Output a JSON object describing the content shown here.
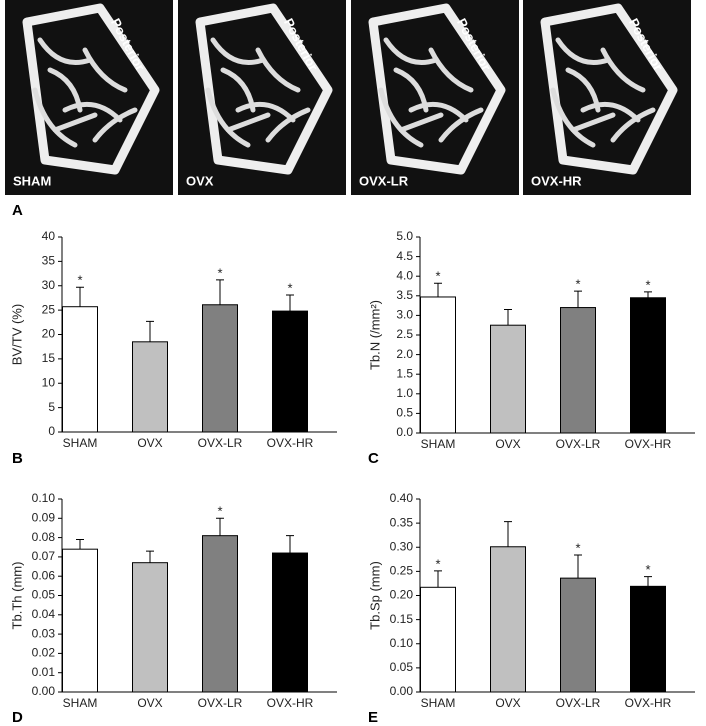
{
  "images": [
    {
      "label": "SHAM",
      "orientation": "Posterior"
    },
    {
      "label": "OVX",
      "orientation": "Posterior"
    },
    {
      "label": "OVX-LR",
      "orientation": "Posterior"
    },
    {
      "label": "OVX-HR",
      "orientation": "Posterior"
    }
  ],
  "images_panel": "A",
  "chart_data": [
    {
      "type": "bar",
      "panel": "B",
      "ylabel": "BV/TV (%)",
      "categories": [
        "SHAM",
        "OVX",
        "OVX-LR",
        "OVX-HR"
      ],
      "values": [
        25.7,
        18.5,
        26.1,
        24.8
      ],
      "errors": [
        4.0,
        4.2,
        5.1,
        3.3
      ],
      "significance": [
        "*",
        null,
        "*",
        "*"
      ],
      "colors": [
        "#ffffff",
        "#c0c0c0",
        "#808080",
        "#000000"
      ],
      "ylim": [
        0,
        40
      ],
      "yticks": [
        0,
        5,
        10,
        15,
        20,
        25,
        30,
        35,
        40
      ]
    },
    {
      "type": "bar",
      "panel": "C",
      "ylabel": "Tb.N (/mm²)",
      "categories": [
        "SHAM",
        "OVX",
        "OVX-LR",
        "OVX-HR"
      ],
      "values": [
        3.47,
        2.75,
        3.2,
        3.45
      ],
      "errors": [
        0.35,
        0.4,
        0.42,
        0.15
      ],
      "significance": [
        "*",
        null,
        "*",
        "*"
      ],
      "colors": [
        "#ffffff",
        "#c0c0c0",
        "#808080",
        "#000000"
      ],
      "ylim": [
        0,
        5
      ],
      "yticks": [
        {
          "value": 0,
          "label": "0.0"
        },
        0.5,
        {
          "value": 1,
          "label": "1.0"
        },
        1.5,
        {
          "value": 2,
          "label": "2.0"
        },
        2.5,
        {
          "value": 3,
          "label": "3.0"
        },
        3.5,
        {
          "value": 4,
          "label": "4.0"
        },
        4.5,
        {
          "value": 5,
          "label": "5.0"
        }
      ]
    },
    {
      "type": "bar",
      "panel": "D",
      "ylabel": "Tb.Th (mm)",
      "categories": [
        "SHAM",
        "OVX",
        "OVX-LR",
        "OVX-HR"
      ],
      "values": [
        0.074,
        0.067,
        0.081,
        0.072
      ],
      "errors": [
        0.005,
        0.006,
        0.009,
        0.009
      ],
      "significance": [
        null,
        null,
        "*",
        null
      ],
      "colors": [
        "#ffffff",
        "#c0c0c0",
        "#808080",
        "#000000"
      ],
      "ylim": [
        0,
        0.1
      ],
      "yticks": [
        {
          "value": 0,
          "label": "0.00"
        },
        {
          "value": 0.01,
          "label": "0.01"
        },
        {
          "value": 0.02,
          "label": "0.02"
        },
        {
          "value": 0.03,
          "label": "0.03"
        },
        {
          "value": 0.04,
          "label": "0.04"
        },
        {
          "value": 0.05,
          "label": "0.05"
        },
        {
          "value": 0.06,
          "label": "0.06"
        },
        {
          "value": 0.07,
          "label": "0.07"
        },
        {
          "value": 0.08,
          "label": "0.08"
        },
        {
          "value": 0.09,
          "label": "0.09"
        },
        {
          "value": 0.1,
          "label": "0.10"
        }
      ]
    },
    {
      "type": "bar",
      "panel": "E",
      "ylabel": "Tb.Sp (mm)",
      "categories": [
        "SHAM",
        "OVX",
        "OVX-LR",
        "OVX-HR"
      ],
      "values": [
        0.217,
        0.301,
        0.236,
        0.219
      ],
      "errors": [
        0.034,
        0.052,
        0.048,
        0.02
      ],
      "significance": [
        "*",
        null,
        "*",
        "*"
      ],
      "colors": [
        "#ffffff",
        "#c0c0c0",
        "#808080",
        "#000000"
      ],
      "ylim": [
        0,
        0.4
      ],
      "yticks": [
        {
          "value": 0,
          "label": "0.00"
        },
        {
          "value": 0.05,
          "label": "0.05"
        },
        {
          "value": 0.1,
          "label": "0.10"
        },
        {
          "value": 0.15,
          "label": "0.15"
        },
        {
          "value": 0.2,
          "label": "0.20"
        },
        {
          "value": 0.25,
          "label": "0.25"
        },
        {
          "value": 0.3,
          "label": "0.30"
        },
        {
          "value": 0.35,
          "label": "0.35"
        },
        {
          "value": 0.4,
          "label": "0.40"
        }
      ]
    }
  ]
}
